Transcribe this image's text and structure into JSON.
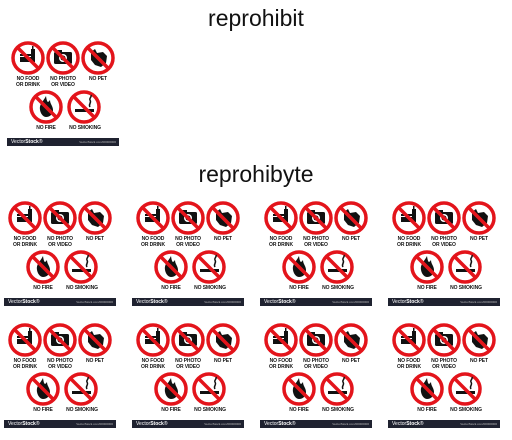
{
  "headings": {
    "top": "reprohibit",
    "bottom": "reprohibyte"
  },
  "card": {
    "labels": {
      "no_food": "NO FOOD\nOR DRINK",
      "no_photo": "NO PHOTO\nOR VIDEO",
      "no_pet": "NO PET",
      "no_fire": "NO FIRE",
      "no_smoking": "NO SMOKING"
    },
    "brand_prefix": "Vector",
    "brand_bold": "Stock",
    "brand_mark": "®",
    "fineprint": "VectorStock.com/00000000"
  },
  "icons": [
    "no-food-icon",
    "no-photo-icon",
    "no-pet-icon",
    "no-fire-icon",
    "no-smoking-icon"
  ],
  "colors": {
    "prohibition_red": "#e3141b",
    "icon_black": "#111111",
    "footer_bg": "#1f2230"
  }
}
